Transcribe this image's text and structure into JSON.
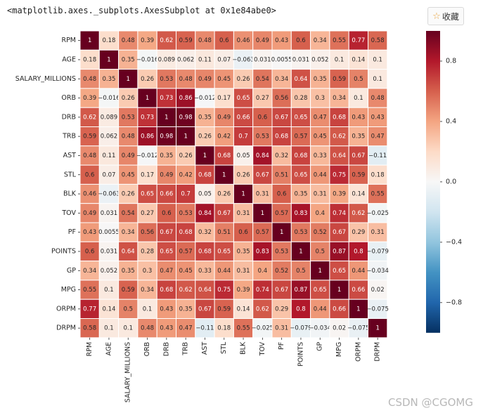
{
  "output_repr": "<matplotlib.axes._subplots.AxesSubplot at 0x1e84abe0>",
  "collect_button": {
    "icon": "star-icon",
    "label": "收藏"
  },
  "watermark": "CSDN @CGOMG",
  "chart_data": {
    "type": "heatmap",
    "title": "",
    "xlabel": "",
    "ylabel": "",
    "colormap": "RdBu_r",
    "vmin": -1,
    "vmax": 1,
    "colorbar_ticks": [
      -0.8,
      -0.4,
      0.0,
      0.4,
      0.8
    ],
    "colorbar_tick_labels": [
      "−0.8",
      "−0.4",
      "0.0",
      "0.4",
      "0.8"
    ],
    "labels": [
      "RPM",
      "AGE",
      "SALARY_MILLIONS",
      "ORB",
      "DRB",
      "TRB",
      "AST",
      "STL",
      "BLK",
      "TOV",
      "PF",
      "POINTS",
      "GP",
      "MPG",
      "ORPM",
      "DRPM"
    ],
    "values": [
      [
        1,
        0.18,
        0.48,
        0.39,
        0.62,
        0.59,
        0.48,
        0.6,
        0.46,
        0.49,
        0.43,
        0.6,
        0.34,
        0.55,
        0.77,
        0.58
      ],
      [
        0.18,
        1,
        0.35,
        -0.016,
        0.089,
        0.062,
        0.11,
        0.07,
        -0.063,
        0.031,
        0.0055,
        0.031,
        0.052,
        0.1,
        0.14,
        0.1
      ],
      [
        0.48,
        0.35,
        1,
        0.26,
        0.53,
        0.48,
        0.49,
        0.45,
        0.26,
        0.54,
        0.34,
        0.64,
        0.35,
        0.59,
        0.5,
        0.1
      ],
      [
        0.39,
        -0.016,
        0.26,
        1,
        0.73,
        0.86,
        -0.012,
        0.17,
        0.65,
        0.27,
        0.56,
        0.28,
        0.3,
        0.34,
        0.1,
        0.48
      ],
      [
        0.62,
        0.089,
        0.53,
        0.73,
        1,
        0.98,
        0.35,
        0.49,
        0.66,
        0.6,
        0.67,
        0.65,
        0.47,
        0.68,
        0.43,
        0.43
      ],
      [
        0.59,
        0.062,
        0.48,
        0.86,
        0.98,
        1,
        0.26,
        0.42,
        0.7,
        0.53,
        0.68,
        0.57,
        0.45,
        0.62,
        0.35,
        0.47
      ],
      [
        0.48,
        0.11,
        0.49,
        -0.012,
        0.35,
        0.26,
        1,
        0.68,
        0.05,
        0.84,
        0.32,
        0.68,
        0.33,
        0.64,
        0.67,
        -0.11
      ],
      [
        0.6,
        0.07,
        0.45,
        0.17,
        0.49,
        0.42,
        0.68,
        1,
        0.26,
        0.67,
        0.51,
        0.65,
        0.44,
        0.75,
        0.59,
        0.18
      ],
      [
        0.46,
        -0.063,
        0.26,
        0.65,
        0.66,
        0.7,
        0.05,
        0.26,
        1,
        0.31,
        0.6,
        0.35,
        0.31,
        0.39,
        0.14,
        0.55
      ],
      [
        0.49,
        0.031,
        0.54,
        0.27,
        0.6,
        0.53,
        0.84,
        0.67,
        0.31,
        1,
        0.57,
        0.83,
        0.4,
        0.74,
        0.62,
        -0.025
      ],
      [
        0.43,
        0.0055,
        0.34,
        0.56,
        0.67,
        0.68,
        0.32,
        0.51,
        0.6,
        0.57,
        1,
        0.53,
        0.52,
        0.67,
        0.29,
        0.31
      ],
      [
        0.6,
        0.031,
        0.64,
        0.28,
        0.65,
        0.57,
        0.68,
        0.65,
        0.35,
        0.83,
        0.53,
        1,
        0.5,
        0.87,
        0.8,
        -0.079
      ],
      [
        0.34,
        0.052,
        0.35,
        0.3,
        0.47,
        0.45,
        0.33,
        0.44,
        0.31,
        0.4,
        0.52,
        0.5,
        1,
        0.65,
        0.44,
        -0.034
      ],
      [
        0.55,
        0.1,
        0.59,
        0.34,
        0.68,
        0.62,
        0.64,
        0.75,
        0.39,
        0.74,
        0.67,
        0.87,
        0.65,
        1,
        0.66,
        0.02
      ],
      [
        0.77,
        0.14,
        0.5,
        0.1,
        0.43,
        0.35,
        0.67,
        0.59,
        0.14,
        0.62,
        0.29,
        0.8,
        0.44,
        0.66,
        1,
        -0.075
      ],
      [
        0.58,
        0.1,
        0.1,
        0.48,
        0.43,
        0.47,
        -0.11,
        0.18,
        0.55,
        -0.025,
        0.31,
        -0.079,
        -0.034,
        0.02,
        -0.075,
        1
      ]
    ]
  }
}
